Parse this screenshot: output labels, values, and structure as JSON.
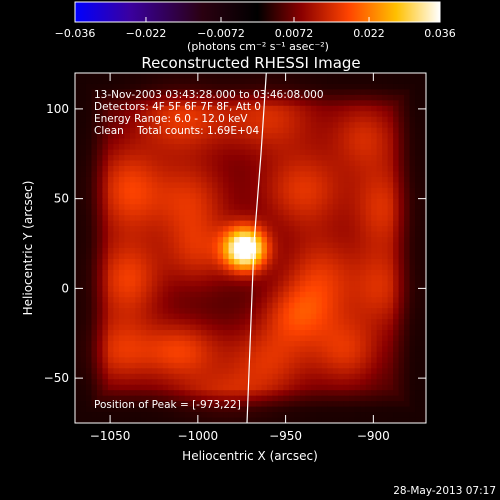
{
  "chart_data": {
    "type": "heatmap",
    "title": "Reconstructed RHESSI Image",
    "xlabel": "Heliocentric X (arcsec)",
    "ylabel": "Heliocentric Y (arcsec)",
    "xlim": [
      -1070,
      -870
    ],
    "ylim": [
      -75,
      120
    ],
    "xticks": [
      -1050,
      -1000,
      -950,
      -900
    ],
    "yticks": [
      -50,
      0,
      50,
      100
    ],
    "xtick_labels": [
      "−1050",
      "−1000",
      "−950",
      "−900"
    ],
    "ytick_labels": [
      "−50",
      "0",
      "50",
      "100"
    ],
    "colorbar": {
      "range": [
        -0.036,
        0.036
      ],
      "ticks": [
        -0.036,
        -0.022,
        -0.0072,
        0.0072,
        0.022,
        0.036
      ],
      "tick_labels": [
        "−0.036",
        "−0.022",
        "−0.0072",
        "0.0072",
        "0.022",
        "0.036"
      ],
      "units_label": "(photons cm⁻² s⁻¹ asec⁻²)",
      "colors": [
        "#0000ff",
        "#3a00a0",
        "#2a0010",
        "#000000",
        "#8a0000",
        "#ff4400",
        "#ffc000",
        "#ffffff"
      ]
    },
    "peak": {
      "x": -973,
      "y": 22,
      "value": 0.036
    },
    "limb_curve": [
      {
        "x": -972,
        "y": -75
      },
      {
        "x": -970,
        "y": -25
      },
      {
        "x": -968,
        "y": 25
      },
      {
        "x": -964,
        "y": 75
      },
      {
        "x": -961,
        "y": 120
      }
    ],
    "blobs": [
      {
        "x": -1010,
        "y": 95,
        "sx": 18,
        "sy": 14,
        "v": 0.011
      },
      {
        "x": -960,
        "y": 95,
        "sx": 20,
        "sy": 14,
        "v": 0.01
      },
      {
        "x": -905,
        "y": 85,
        "sx": 14,
        "sy": 14,
        "v": 0.009
      },
      {
        "x": -1040,
        "y": 55,
        "sx": 14,
        "sy": 18,
        "v": 0.012
      },
      {
        "x": -1005,
        "y": 50,
        "sx": 16,
        "sy": 16,
        "v": 0.01
      },
      {
        "x": -940,
        "y": 55,
        "sx": 18,
        "sy": 16,
        "v": 0.011
      },
      {
        "x": -895,
        "y": 45,
        "sx": 12,
        "sy": 18,
        "v": 0.01
      },
      {
        "x": -1040,
        "y": 5,
        "sx": 14,
        "sy": 16,
        "v": 0.012
      },
      {
        "x": -930,
        "y": 5,
        "sx": 16,
        "sy": 18,
        "v": 0.011
      },
      {
        "x": -895,
        "y": 0,
        "sx": 12,
        "sy": 16,
        "v": 0.009
      },
      {
        "x": -1045,
        "y": -35,
        "sx": 14,
        "sy": 14,
        "v": 0.01
      },
      {
        "x": -1010,
        "y": -35,
        "sx": 16,
        "sy": 12,
        "v": 0.012
      },
      {
        "x": -960,
        "y": -40,
        "sx": 18,
        "sy": 14,
        "v": 0.01
      },
      {
        "x": -915,
        "y": -35,
        "sx": 14,
        "sy": 14,
        "v": 0.01
      },
      {
        "x": -985,
        "y": -60,
        "sx": 20,
        "sy": 10,
        "v": 0.008
      },
      {
        "x": -1000,
        "y": 20,
        "sx": 14,
        "sy": 14,
        "v": 0.009
      },
      {
        "x": -945,
        "y": -15,
        "sx": 14,
        "sy": 12,
        "v": 0.009
      }
    ]
  },
  "annotations": {
    "time_range": "13-Nov-2003 03:43:28.000 to 03:46:08.000",
    "detectors": "Detectors: 4F 5F 6F 7F 8F, Att 0",
    "energy": "Energy Range: 6.0 - 12.0 keV",
    "clean": "Clean    Total counts: 1.69E+04",
    "peak_position": "Position of Peak = [-973,22]"
  },
  "footer": {
    "date": "28-May-2013 07:17"
  }
}
